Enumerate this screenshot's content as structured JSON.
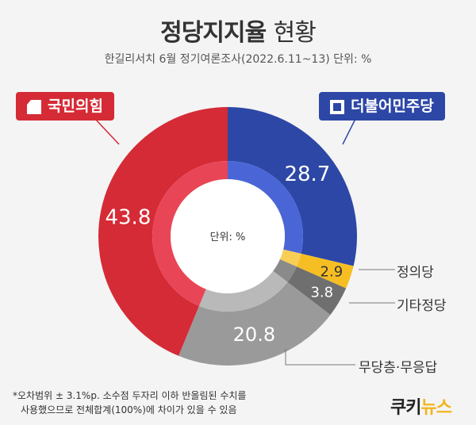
{
  "header": {
    "title_bold": "정당지지율",
    "title_thin": "현황",
    "subtitle": "한길리서치 6월 정기여론조사(2022.6.11~13) 단위: %"
  },
  "labels": {
    "ppp": "국민의힘",
    "dem": "더불어민주당",
    "center_unit": "단위: %"
  },
  "footnote": {
    "line1": "*오차범위 ± 3.1%p. 소수점 두자리 이하 반올림된 수치를",
    "line2": "사용했으므로 전체합계(100%)에 차이가 있을 수 있음"
  },
  "logo": {
    "part1": "쿠키",
    "part2": "뉴스"
  },
  "chart_data": {
    "type": "pie",
    "title": "정당지지율 현황",
    "unit": "%",
    "categories": [
      "더불어민주당",
      "정의당",
      "기타정당",
      "무당층·무응답",
      "국민의힘"
    ],
    "values": [
      28.7,
      2.9,
      3.8,
      20.8,
      43.8
    ],
    "value_labels": [
      "28.7",
      "2.9",
      "3.8",
      "20.8",
      "43.8"
    ],
    "colors": [
      "#2d47a6",
      "#f6be23",
      "#6f6f6f",
      "#9a9a9a",
      "#d52b36"
    ],
    "inner_colors": [
      "#4a66d6",
      "#f8cf55",
      "#8a8a8a",
      "#b9b9b9",
      "#e84656"
    ],
    "legend_side": [
      "",
      "정의당",
      "기타정당",
      "무당층·무응답",
      ""
    ]
  }
}
